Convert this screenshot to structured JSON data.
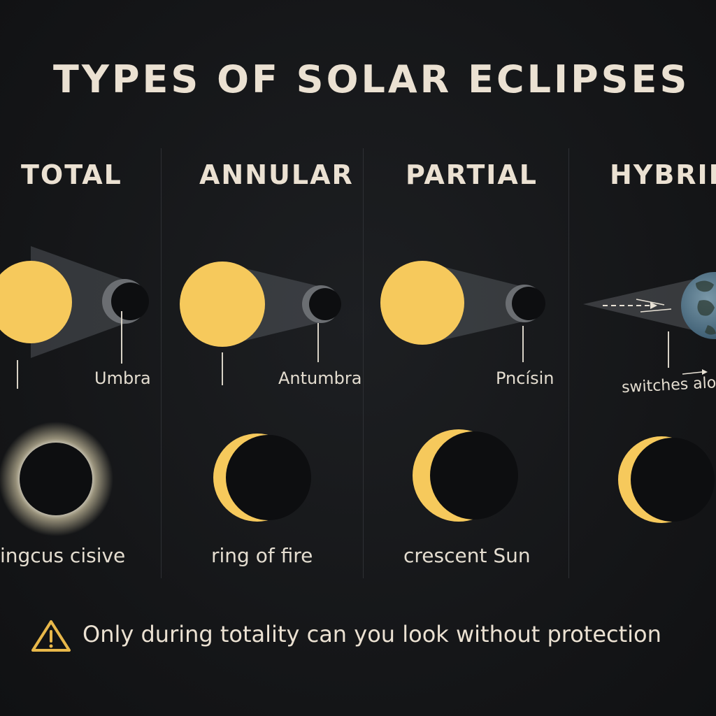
{
  "title": "TYPES OF SOLAR ECLIPSES",
  "colors": {
    "sun": "#f6c95c",
    "moon": "#0d0e10",
    "background": "#141517",
    "text": "#ebe1d2"
  },
  "columns": [
    {
      "heading": "TOTAL",
      "label": "Umbra",
      "caption": "ingcus cisive"
    },
    {
      "heading": "ANNULAR",
      "label": "Antumbra",
      "caption": "ring of fire"
    },
    {
      "heading": "PARTIAL",
      "label": "Pncísin",
      "caption": "crescent Sun"
    },
    {
      "heading": "HYBRID",
      "label": "switches along",
      "caption": ""
    }
  ],
  "warning": {
    "icon": "warning-triangle-icon",
    "text": "Only during totality can you look without protection"
  }
}
